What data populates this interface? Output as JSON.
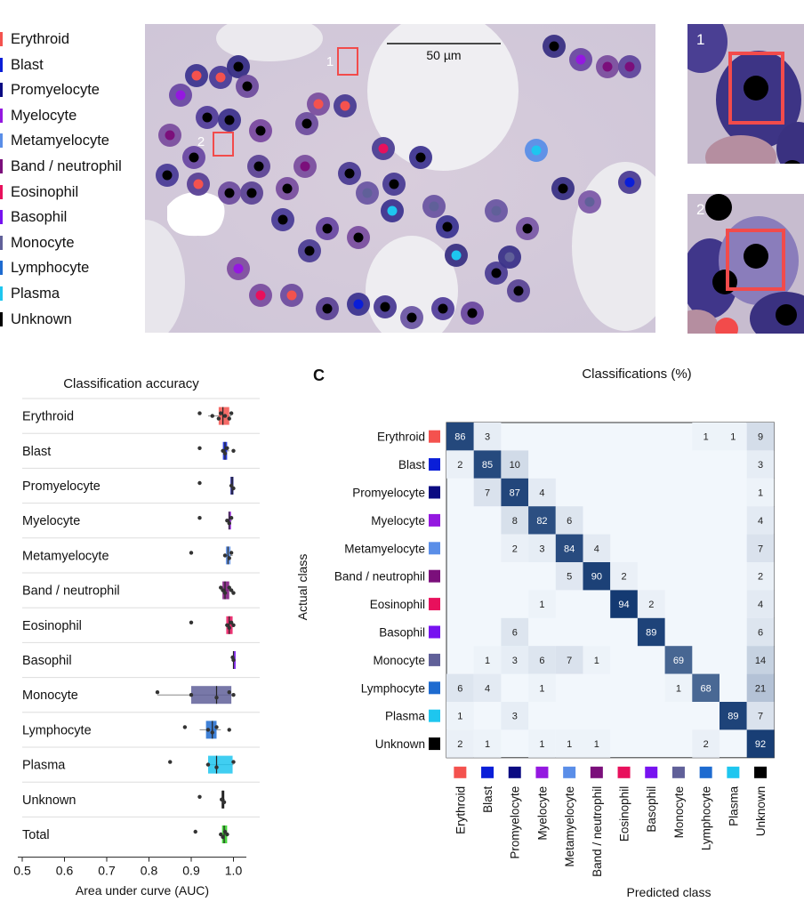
{
  "legend": [
    {
      "label": "Erythroid",
      "color": "#f4524e"
    },
    {
      "label": "Blast",
      "color": "#0a1ed8"
    },
    {
      "label": "Promyelocyte",
      "color": "#0b0b82"
    },
    {
      "label": "Myelocyte",
      "color": "#9418e0"
    },
    {
      "label": "Metamyelocyte",
      "color": "#5a8ee8"
    },
    {
      "label": "Band / neutrophil",
      "color": "#7b0f7b"
    },
    {
      "label": "Eosinophil",
      "color": "#e8105c"
    },
    {
      "label": "Basophil",
      "color": "#7712f0"
    },
    {
      "label": "Monocyte",
      "color": "#606099"
    },
    {
      "label": "Lymphocyte",
      "color": "#1e6bd0"
    },
    {
      "label": "Plasma",
      "color": "#1ec6ef"
    },
    {
      "label": "Unknown",
      "color": "#000000"
    }
  ],
  "micrograph": {
    "scale_bar": "50 µm",
    "box_labels": [
      "1",
      "2"
    ]
  },
  "insets": [
    "1",
    "2"
  ],
  "chart_data": [
    {
      "type": "box",
      "title": "Classification accuracy",
      "xlabel": "Area under curve (AUC)",
      "ylabel": "",
      "xlim": [
        0.5,
        1.02
      ],
      "xticks": [
        "0.5",
        "0.6",
        "0.7",
        "0.8",
        "0.9",
        "1.0"
      ],
      "categories": [
        "Erythroid",
        "Blast",
        "Promyelocyte",
        "Myelocyte",
        "Metamyelocyte",
        "Band / neutrophil",
        "Eosinophil",
        "Basophil",
        "Monocyte",
        "Lymphocyte",
        "Plasma",
        "Unknown",
        "Total"
      ],
      "colors": [
        "#f4524e",
        "#0a1ed8",
        "#0b0b82",
        "#9418e0",
        "#5a8ee8",
        "#7b0f7b",
        "#e8105c",
        "#7712f0",
        "#606099",
        "#1e6bd0",
        "#1ec6ef",
        "#000000",
        "#2cd21e"
      ],
      "boxes": [
        {
          "min": 0.94,
          "q1": 0.965,
          "median": 0.975,
          "q3": 0.99,
          "max": 0.995,
          "points": [
            0.92,
            0.95,
            0.965,
            0.97,
            0.98,
            0.99,
            0.995
          ]
        },
        {
          "min": 0.97,
          "q1": 0.975,
          "median": 0.98,
          "q3": 0.985,
          "max": 0.99,
          "points": [
            0.92,
            0.975,
            0.98,
            0.985,
            1.0
          ]
        },
        {
          "min": 0.99,
          "q1": 0.993,
          "median": 0.997,
          "q3": 1.0,
          "max": 1.0,
          "points": [
            0.92,
            0.995,
            1.0
          ]
        },
        {
          "min": 0.985,
          "q1": 0.988,
          "median": 0.99,
          "q3": 0.993,
          "max": 0.996,
          "points": [
            0.92,
            0.985,
            0.99,
            0.995
          ]
        },
        {
          "min": 0.98,
          "q1": 0.982,
          "median": 0.987,
          "q3": 0.993,
          "max": 0.998,
          "points": [
            0.9,
            0.98,
            0.99,
            0.995
          ]
        },
        {
          "min": 0.97,
          "q1": 0.974,
          "median": 0.98,
          "q3": 0.99,
          "max": 0.997,
          "points": [
            0.97,
            0.975,
            0.98,
            0.99,
            0.995,
            1.0
          ]
        },
        {
          "min": 0.98,
          "q1": 0.983,
          "median": 0.99,
          "q3": 0.998,
          "max": 1.0,
          "points": [
            0.9,
            0.985,
            0.99,
            0.995,
            1.0
          ]
        },
        {
          "min": 0.998,
          "q1": 0.999,
          "median": 1.0,
          "q3": 1.0,
          "max": 1.0,
          "points": [
            0.998,
            1.0
          ]
        },
        {
          "min": 0.82,
          "q1": 0.9,
          "median": 0.96,
          "q3": 0.995,
          "max": 1.0,
          "points": [
            0.82,
            0.9,
            0.96,
            0.99,
            1.0
          ]
        },
        {
          "min": 0.92,
          "q1": 0.935,
          "median": 0.95,
          "q3": 0.96,
          "max": 0.97,
          "points": [
            0.885,
            0.94,
            0.95,
            0.96,
            0.99
          ]
        },
        {
          "min": 0.935,
          "q1": 0.94,
          "median": 0.96,
          "q3": 0.998,
          "max": 1.0,
          "points": [
            0.85,
            0.94,
            0.96,
            1.0
          ]
        },
        {
          "min": 0.97,
          "q1": 0.972,
          "median": 0.975,
          "q3": 0.978,
          "max": 0.98,
          "points": [
            0.92,
            0.972,
            0.978
          ]
        },
        {
          "min": 0.97,
          "q1": 0.973,
          "median": 0.978,
          "q3": 0.985,
          "max": 0.99,
          "points": [
            0.91,
            0.97,
            0.975,
            0.98,
            0.985
          ]
        }
      ]
    },
    {
      "type": "heatmap",
      "panel_label": "C",
      "title": "Classifications (%)",
      "xlabel": "Predicted class",
      "ylabel": "Actual class",
      "rows": [
        "Erythroid",
        "Blast",
        "Promyelocyte",
        "Myelocyte",
        "Metamyelocyte",
        "Band / neutrophil",
        "Eosinophil",
        "Basophil",
        "Monocyte",
        "Lymphocyte",
        "Plasma",
        "Unknown"
      ],
      "cols": [
        "Erythroid",
        "Blast",
        "Promyelocyte",
        "Myelocyte",
        "Metamyelocyte",
        "Band / neutrophil",
        "Eosinophil",
        "Basophil",
        "Monocyte",
        "Lymphocyte",
        "Plasma",
        "Unknown"
      ],
      "colors": [
        "#f4524e",
        "#0a1ed8",
        "#0b0b82",
        "#9418e0",
        "#5a8ee8",
        "#7b0f7b",
        "#e8105c",
        "#7712f0",
        "#606099",
        "#1e6bd0",
        "#1ec6ef",
        "#000000"
      ],
      "values": [
        [
          86,
          3,
          null,
          null,
          null,
          null,
          null,
          null,
          null,
          1,
          1,
          9
        ],
        [
          2,
          85,
          10,
          null,
          null,
          null,
          null,
          null,
          null,
          null,
          null,
          3
        ],
        [
          null,
          7,
          87,
          4,
          null,
          null,
          null,
          null,
          null,
          null,
          null,
          1
        ],
        [
          null,
          null,
          8,
          82,
          6,
          null,
          null,
          null,
          null,
          null,
          null,
          4
        ],
        [
          null,
          null,
          2,
          3,
          84,
          4,
          null,
          null,
          null,
          null,
          null,
          7
        ],
        [
          null,
          null,
          null,
          null,
          5,
          90,
          2,
          null,
          null,
          null,
          null,
          2
        ],
        [
          null,
          null,
          null,
          1,
          null,
          null,
          94,
          2,
          null,
          null,
          null,
          4
        ],
        [
          null,
          null,
          6,
          null,
          null,
          null,
          null,
          89,
          null,
          null,
          null,
          6
        ],
        [
          null,
          1,
          3,
          6,
          7,
          1,
          null,
          null,
          69,
          null,
          null,
          14
        ],
        [
          6,
          4,
          null,
          1,
          null,
          null,
          null,
          null,
          1,
          68,
          null,
          21
        ],
        [
          1,
          null,
          3,
          null,
          null,
          null,
          null,
          null,
          null,
          null,
          89,
          7
        ],
        [
          2,
          1,
          null,
          1,
          1,
          1,
          null,
          null,
          null,
          2,
          null,
          92
        ]
      ]
    }
  ]
}
